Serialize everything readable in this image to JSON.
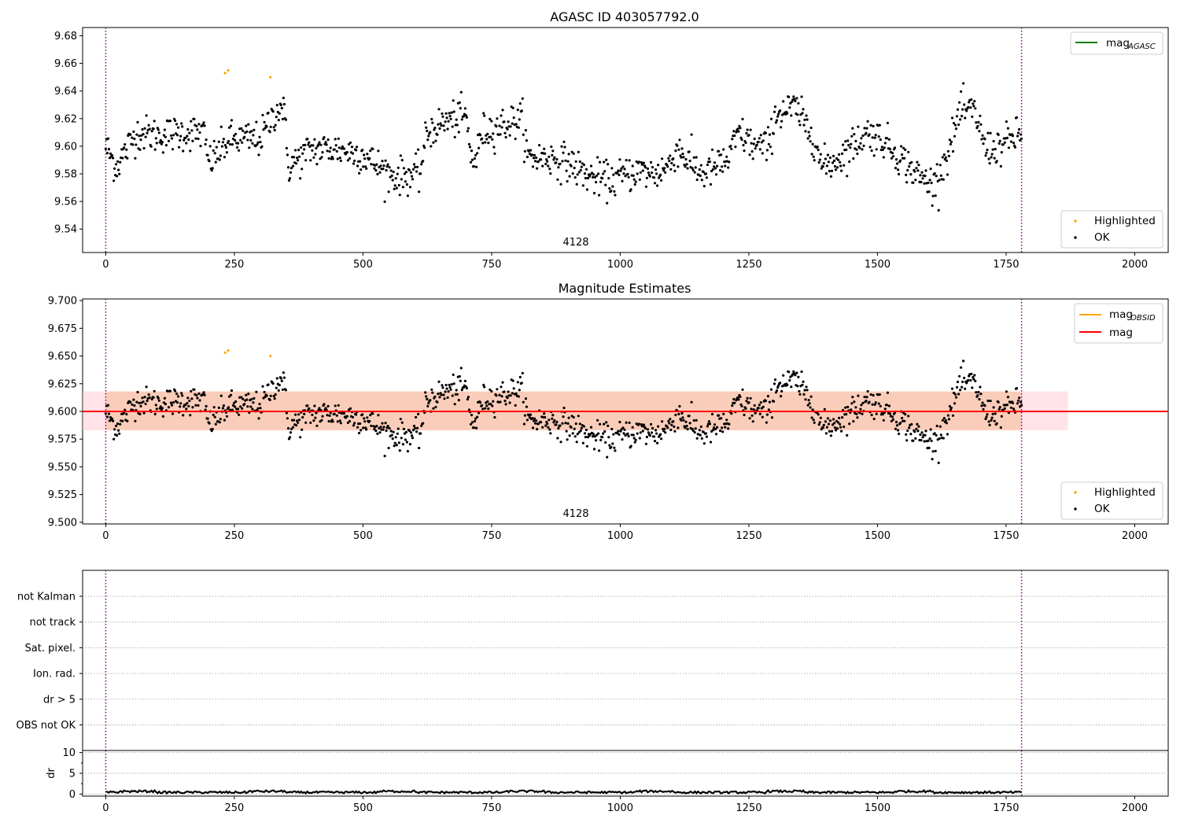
{
  "chart_data": [
    {
      "type": "scatter",
      "title": "AGASC ID 403057792.0",
      "xlim": [
        -45,
        2065
      ],
      "ylim": [
        9.523,
        9.686
      ],
      "xticks": [
        0,
        250,
        500,
        750,
        1000,
        1250,
        1500,
        1750,
        2000
      ],
      "yticks": [
        9.54,
        9.56,
        9.58,
        9.6,
        9.62,
        9.64,
        9.66,
        9.68
      ],
      "vlines": [
        0,
        1780
      ],
      "annotation": {
        "text": "4128",
        "x": 890,
        "y": 9.529
      },
      "legend_lines": [
        {
          "label": "mag",
          "sub": "AGASC",
          "color": "#008000"
        }
      ],
      "legend_points": [
        {
          "label": "Highlighted",
          "color": "#ffa500"
        },
        {
          "label": "OK",
          "color": "#000000"
        }
      ],
      "highlighted_points": [
        [
          232,
          9.653
        ],
        [
          238,
          9.655
        ],
        [
          320,
          9.65
        ]
      ],
      "ok_series": {
        "x_range": [
          0,
          1780
        ],
        "count": 1150,
        "levels": [
          [
            0,
            9.6
          ],
          [
            20,
            9.585
          ],
          [
            60,
            9.61
          ],
          [
            100,
            9.608
          ],
          [
            160,
            9.61
          ],
          [
            190,
            9.61
          ],
          [
            200,
            9.588
          ],
          [
            225,
            9.598
          ],
          [
            240,
            9.605
          ],
          [
            270,
            9.605
          ],
          [
            300,
            9.605
          ],
          [
            330,
            9.625
          ],
          [
            345,
            9.63
          ],
          [
            355,
            9.585
          ],
          [
            400,
            9.598
          ],
          [
            450,
            9.598
          ],
          [
            500,
            9.594
          ],
          [
            520,
            9.588
          ],
          [
            560,
            9.578
          ],
          [
            610,
            9.58
          ],
          [
            625,
            9.61
          ],
          [
            660,
            9.618
          ],
          [
            700,
            9.622
          ],
          [
            710,
            9.592
          ],
          [
            720,
            9.59
          ],
          [
            730,
            9.61
          ],
          [
            760,
            9.614
          ],
          [
            810,
            9.62
          ],
          [
            820,
            9.592
          ],
          [
            860,
            9.592
          ],
          [
            900,
            9.588
          ],
          [
            940,
            9.578
          ],
          [
            980,
            9.575
          ],
          [
            1030,
            9.582
          ],
          [
            1070,
            9.58
          ],
          [
            1100,
            9.588
          ],
          [
            1110,
            9.6
          ],
          [
            1130,
            9.59
          ],
          [
            1160,
            9.58
          ],
          [
            1210,
            9.59
          ],
          [
            1230,
            9.61
          ],
          [
            1260,
            9.6
          ],
          [
            1290,
            9.6
          ],
          [
            1300,
            9.623
          ],
          [
            1340,
            9.628
          ],
          [
            1360,
            9.615
          ],
          [
            1380,
            9.605
          ],
          [
            1390,
            9.585
          ],
          [
            1420,
            9.59
          ],
          [
            1450,
            9.6
          ],
          [
            1480,
            9.61
          ],
          [
            1510,
            9.605
          ],
          [
            1550,
            9.59
          ],
          [
            1580,
            9.578
          ],
          [
            1610,
            9.572
          ],
          [
            1640,
            9.598
          ],
          [
            1660,
            9.625
          ],
          [
            1690,
            9.625
          ],
          [
            1710,
            9.598
          ],
          [
            1740,
            9.6
          ],
          [
            1780,
            9.61
          ]
        ],
        "noise": 0.01
      }
    },
    {
      "type": "scatter",
      "title": "Magnitude Estimates",
      "xlim": [
        -45,
        2065
      ],
      "ylim": [
        9.4985,
        9.7015
      ],
      "xticks": [
        0,
        250,
        500,
        750,
        1000,
        1250,
        1500,
        1750,
        2000
      ],
      "yticks": [
        9.5,
        9.525,
        9.55,
        9.575,
        9.6,
        9.625,
        9.65,
        9.675,
        9.7
      ],
      "ytick_labels": [
        "9.500",
        "9.525",
        "9.550",
        "9.575",
        "9.600",
        "9.625",
        "9.650",
        "9.675",
        "9.700"
      ],
      "vlines": [
        0,
        1780
      ],
      "annotation": {
        "text": "4128",
        "x": 890,
        "y": 9.504
      },
      "mag_line": 9.6,
      "obsid_band": {
        "x": [
          0,
          1780
        ],
        "y": [
          9.583,
          9.618
        ],
        "color": "#f4b183"
      },
      "mag_band": {
        "x": [
          -45,
          1870
        ],
        "y": [
          9.583,
          9.618
        ],
        "color": "#ffc0cb"
      },
      "legend_lines": [
        {
          "label": "mag",
          "sub": "OBSID",
          "color": "#ffa500"
        },
        {
          "label": "mag",
          "sub": "",
          "color": "#ff0000"
        }
      ],
      "legend_points": [
        {
          "label": "Highlighted",
          "color": "#ffa500"
        },
        {
          "label": "OK",
          "color": "#000000"
        }
      ]
    },
    {
      "type": "table",
      "rows": [
        "not Kalman",
        "not track",
        "Sat. pixel.",
        "Ion. rad.",
        "dr > 5",
        "OBS not OK"
      ],
      "xlim": [
        -45,
        2065
      ],
      "vlines": [
        0,
        1780
      ]
    },
    {
      "type": "line",
      "ylabel": "dr",
      "xlim": [
        -45,
        2065
      ],
      "ylim": [
        -0.5,
        10.5
      ],
      "yticks": [
        0,
        5,
        10
      ],
      "xticks": [
        0,
        250,
        500,
        750,
        1000,
        1250,
        1500,
        1750,
        2000
      ],
      "vlines": [
        0,
        1780
      ],
      "dr_level": 0.4
    }
  ]
}
